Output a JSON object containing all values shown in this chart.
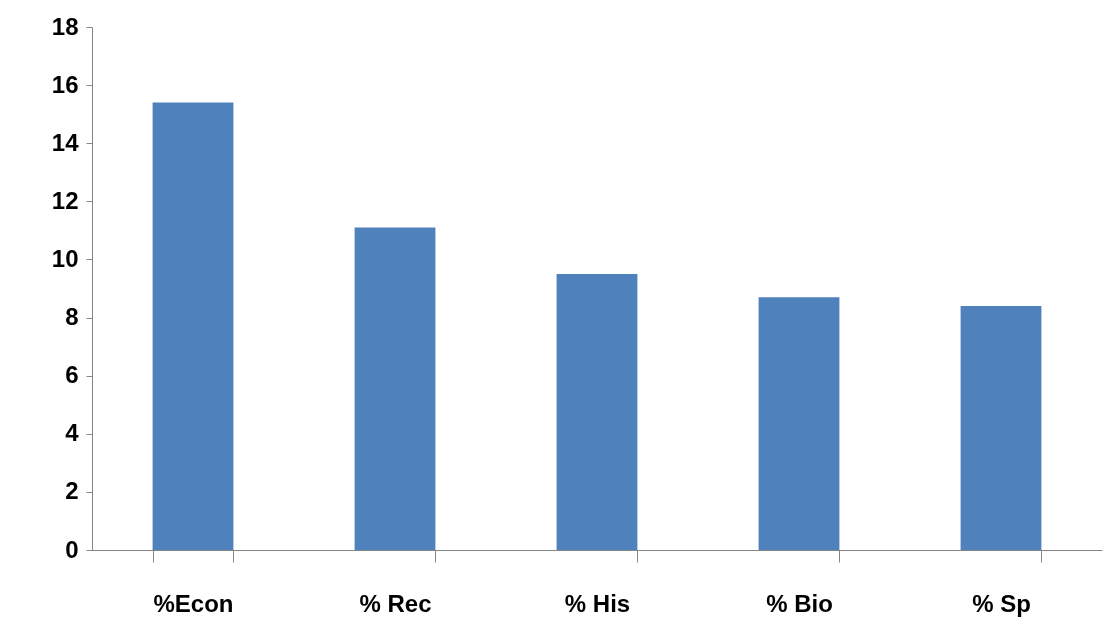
{
  "chart_data": {
    "type": "bar",
    "categories": [
      "%Econ",
      "% Rec",
      "% His",
      "% Bio",
      "% Sp"
    ],
    "values": [
      15.4,
      11.1,
      9.5,
      8.7,
      8.4
    ],
    "color": "#4f81bd",
    "ylim": [
      0,
      18
    ],
    "yticks": [
      0,
      2,
      4,
      6,
      8,
      10,
      12,
      14,
      16,
      18
    ],
    "grid": false
  }
}
